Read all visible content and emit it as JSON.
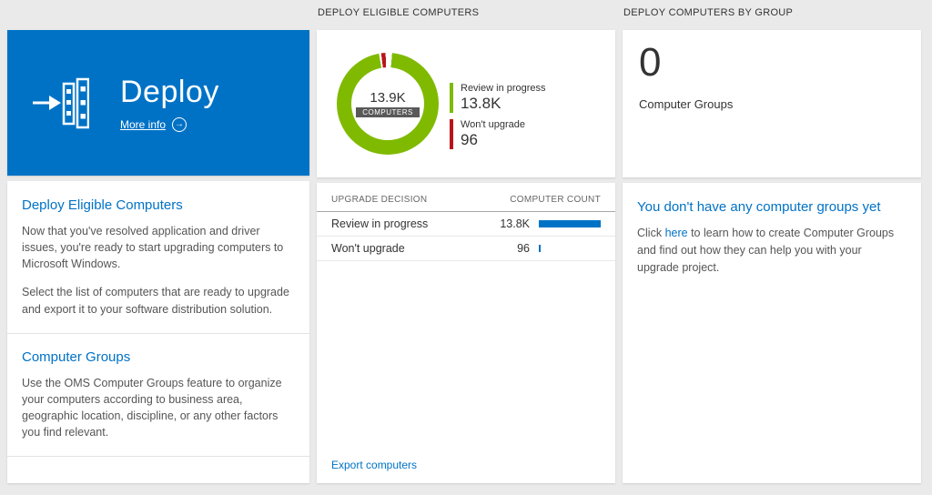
{
  "colors": {
    "accent": "#0072c6",
    "tile_blue": "#0072c6",
    "green": "#7fba00",
    "red": "#ba141a"
  },
  "icons": {
    "arrow_right": "→",
    "deploy_icon": "arrow-into-servers"
  },
  "columns": {
    "middle_header": "DEPLOY ELIGIBLE COMPUTERS",
    "right_header": "DEPLOY COMPUTERS BY GROUP"
  },
  "deploy_tile": {
    "title": "Deploy",
    "more_info": "More info"
  },
  "left_panel": {
    "sections": [
      {
        "heading": "Deploy Eligible Computers",
        "paragraphs": [
          "Now that you've resolved application and driver issues, you're ready to start upgrading computers to Microsoft Windows.",
          "Select the list of computers that are ready to upgrade and export it to your software distribution solution."
        ]
      },
      {
        "heading": "Computer Groups",
        "paragraphs": [
          "Use the OMS Computer Groups feature to organize your computers according to business area, geographic location, discipline, or any other factors you find relevant."
        ]
      }
    ]
  },
  "chart_data": {
    "type": "pie",
    "title": "DEPLOY ELIGIBLE COMPUTERS",
    "center_value": "13.9K",
    "center_label": "COMPUTERS",
    "categories": [
      "Review in progress",
      "Won't upgrade"
    ],
    "values": [
      13800,
      96
    ],
    "legend_position": "right"
  },
  "donut": {
    "center_value": "13.9K",
    "center_label": "COMPUTERS",
    "legend": [
      {
        "label": "Review in progress",
        "value": "13.8K",
        "color": "#7fba00"
      },
      {
        "label": "Won't upgrade",
        "value": "96",
        "color": "#ba141a"
      }
    ]
  },
  "table": {
    "bar_color": "#0072c6",
    "columns": [
      "UPGRADE DECISION",
      "COMPUTER COUNT"
    ],
    "rows": [
      {
        "label": "Review in progress",
        "value": "13.8K",
        "bar_pct": 100
      },
      {
        "label": "Won't upgrade",
        "value": "96",
        "bar_pct": 3
      }
    ],
    "export_link": "Export computers"
  },
  "groups": {
    "count": "0",
    "count_label": "Computer Groups",
    "heading": "You don't have any computer groups yet",
    "body_prefix": "Click ",
    "link_text": "here",
    "body_suffix": " to learn how to create Computer Groups and find out how they can help you with your upgrade project."
  }
}
